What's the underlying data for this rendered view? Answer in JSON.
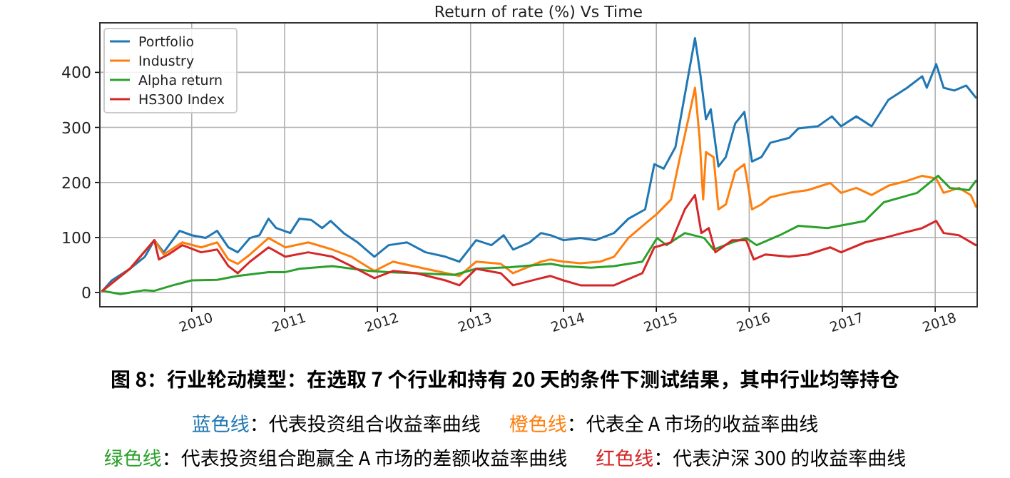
{
  "chart_data": {
    "type": "line",
    "title": "Return of rate (%) Vs Time",
    "xlim": [
      "2009-01-05",
      "2018-06-15"
    ],
    "ylim": [
      -26,
      490
    ],
    "xticks": [
      "2010",
      "2011",
      "2012",
      "2013",
      "2014",
      "2015",
      "2016",
      "2017",
      "2018"
    ],
    "yticks": [
      0,
      100,
      200,
      300,
      400
    ],
    "grid": true,
    "legend": "top left",
    "line_style": "solid",
    "marker": "none",
    "series": [
      {
        "name": "Portfolio",
        "color": "#1f77b4",
        "x": [
          "2009-01-15",
          "2009-02-21",
          "2009-05-03",
          "2009-07-01",
          "2009-08-07",
          "2009-09-13",
          "2009-11-14",
          "2010-01-01",
          "2010-02-25",
          "2010-04-11",
          "2010-05-25",
          "2010-07-01",
          "2010-08-18",
          "2010-09-24",
          "2010-10-30",
          "2010-11-29",
          "2011-01-23",
          "2011-02-28",
          "2011-04-15",
          "2011-05-29",
          "2011-07-01",
          "2011-08-21",
          "2011-10-15",
          "2011-12-20",
          "2012-02-14",
          "2012-04-26",
          "2012-07-08",
          "2012-09-24",
          "2012-11-18",
          "2013-01-23",
          "2013-03-24",
          "2013-05-11",
          "2013-06-17",
          "2013-08-21",
          "2013-10-05",
          "2013-11-11",
          "2014-01-01",
          "2014-03-09",
          "2014-05-07",
          "2014-07-19",
          "2014-09-13",
          "2014-11-18",
          "2014-12-24",
          "2015-01-30",
          "2015-03-17",
          "2015-04-23",
          "2015-06-02",
          "2015-06-24",
          "2015-07-15",
          "2015-08-03",
          "2015-09-02",
          "2015-10-01",
          "2015-11-07",
          "2015-12-13",
          "2016-01-12",
          "2016-02-18",
          "2016-03-24",
          "2016-06-06",
          "2016-07-12",
          "2016-09-27",
          "2016-11-21",
          "2016-12-27",
          "2017-02-25",
          "2017-04-26",
          "2017-07-01",
          "2017-09-13",
          "2017-11-11",
          "2017-11-29",
          "2018-01-05",
          "2018-02-03",
          "2018-03-17",
          "2018-05-03",
          "2018-06-10"
        ],
        "values": [
          3,
          22,
          43,
          65,
          95,
          73,
          112,
          104,
          99,
          112,
          82,
          73,
          99,
          104,
          134,
          117,
          108,
          134,
          132,
          117,
          130,
          108,
          91,
          65,
          86,
          91,
          73,
          65,
          56,
          95,
          86,
          104,
          78,
          91,
          108,
          104,
          95,
          99,
          95,
          108,
          134,
          151,
          233,
          225,
          264,
          359,
          462,
          393,
          315,
          333,
          229,
          246,
          307,
          328,
          238,
          246,
          272,
          281,
          298,
          302,
          320,
          302,
          320,
          302,
          350,
          372,
          393,
          372,
          415,
          372,
          367,
          376,
          354
        ]
      },
      {
        "name": "Industry",
        "color": "#ff7f0e",
        "x": [
          "2009-01-15",
          "2009-05-03",
          "2009-08-07",
          "2009-09-13",
          "2009-11-25",
          "2010-02-07",
          "2010-04-11",
          "2010-05-25",
          "2010-07-01",
          "2010-08-18",
          "2010-10-30",
          "2011-01-04",
          "2011-04-04",
          "2011-07-08",
          "2011-09-20",
          "2011-12-20",
          "2012-03-02",
          "2012-07-08",
          "2012-11-18",
          "2013-01-23",
          "2013-04-30",
          "2013-06-17",
          "2013-10-05",
          "2013-11-11",
          "2014-01-01",
          "2014-03-09",
          "2014-05-25",
          "2014-07-19",
          "2014-09-13",
          "2014-11-18",
          "2015-01-04",
          "2015-02-28",
          "2015-04-04",
          "2015-05-11",
          "2015-06-02",
          "2015-06-20",
          "2015-07-04",
          "2015-07-15",
          "2015-08-14",
          "2015-09-02",
          "2015-10-01",
          "2015-11-07",
          "2015-12-13",
          "2016-01-12",
          "2016-02-18",
          "2016-03-24",
          "2016-06-06",
          "2016-08-18",
          "2016-11-14",
          "2016-12-27",
          "2017-02-25",
          "2017-04-26",
          "2017-07-01",
          "2017-09-13",
          "2017-11-11",
          "2018-01-05",
          "2018-02-03",
          "2018-04-04",
          "2018-05-21",
          "2018-06-10"
        ],
        "values": [
          3,
          43,
          95,
          69,
          91,
          82,
          91,
          60,
          52,
          69,
          99,
          82,
          91,
          78,
          65,
          39,
          56,
          43,
          30,
          56,
          52,
          35,
          56,
          60,
          56,
          53,
          56,
          65,
          99,
          125,
          143,
          169,
          246,
          324,
          372,
          281,
          169,
          255,
          246,
          151,
          160,
          220,
          233,
          151,
          160,
          173,
          181,
          186,
          199,
          181,
          190,
          177,
          194,
          203,
          212,
          207,
          181,
          190,
          177,
          156
        ]
      },
      {
        "name": "Alpha return",
        "color": "#2ca02c",
        "x": [
          "2009-01-15",
          "2009-03-27",
          "2009-06-27",
          "2009-08-07",
          "2009-10-19",
          "2010-01-01",
          "2010-04-11",
          "2010-07-01",
          "2010-10-30",
          "2011-01-04",
          "2011-02-28",
          "2011-07-08",
          "2011-12-02",
          "2012-02-14",
          "2012-06-02",
          "2012-10-30",
          "2013-01-23",
          "2013-06-06",
          "2013-11-11",
          "2014-01-01",
          "2014-04-19",
          "2014-07-19",
          "2014-11-07",
          "2015-01-04",
          "2015-02-10",
          "2015-04-23",
          "2015-07-08",
          "2015-08-14",
          "2015-10-26",
          "2015-12-20",
          "2016-01-30",
          "2016-04-30",
          "2016-07-12",
          "2016-11-03",
          "2017-03-31",
          "2017-06-13",
          "2017-10-22",
          "2018-01-12",
          "2018-02-28",
          "2018-05-14",
          "2018-06-10"
        ],
        "values": [
          3,
          -3,
          4,
          3,
          13,
          22,
          23,
          30,
          37,
          37,
          43,
          48,
          39,
          37,
          35,
          32,
          43,
          46,
          52,
          48,
          45,
          48,
          56,
          99,
          86,
          108,
          99,
          78,
          91,
          99,
          86,
          104,
          121,
          117,
          130,
          164,
          181,
          212,
          190,
          186,
          203
        ]
      },
      {
        "name": "HS300 Index",
        "color": "#d62728",
        "x": [
          "2009-01-15",
          "2009-05-03",
          "2009-08-07",
          "2009-08-25",
          "2009-10-01",
          "2009-11-25",
          "2010-02-07",
          "2010-04-11",
          "2010-05-25",
          "2010-07-01",
          "2010-08-18",
          "2010-10-30",
          "2011-01-04",
          "2011-04-04",
          "2011-07-08",
          "2011-09-20",
          "2011-12-20",
          "2012-03-02",
          "2012-06-02",
          "2012-09-24",
          "2012-11-18",
          "2013-01-23",
          "2013-04-30",
          "2013-06-17",
          "2013-10-05",
          "2013-11-11",
          "2014-01-01",
          "2014-03-09",
          "2014-07-19",
          "2014-11-07",
          "2014-12-24",
          "2015-02-28",
          "2015-04-23",
          "2015-06-02",
          "2015-06-27",
          "2015-07-26",
          "2015-08-21",
          "2015-10-26",
          "2015-12-20",
          "2016-01-19",
          "2016-03-05",
          "2016-06-06",
          "2016-08-18",
          "2016-11-14",
          "2016-12-27",
          "2017-03-31",
          "2017-06-13",
          "2017-08-25",
          "2017-11-11",
          "2018-01-05",
          "2018-02-03",
          "2018-04-04",
          "2018-06-10"
        ],
        "values": [
          3,
          43,
          95,
          60,
          69,
          86,
          73,
          78,
          48,
          35,
          56,
          82,
          65,
          73,
          65,
          48,
          26,
          39,
          35,
          22,
          13,
          43,
          35,
          13,
          26,
          30,
          22,
          13,
          13,
          35,
          82,
          91,
          151,
          177,
          108,
          117,
          73,
          95,
          95,
          60,
          69,
          65,
          69,
          82,
          73,
          91,
          99,
          108,
          117,
          130,
          108,
          104,
          86
        ]
      }
    ],
    "annotations": [
      "图 8：行业轮动模型：在选取 7 个行业和持有 20 天的条件下测试结果，其中行业均等持仓",
      "蓝色线：代表投资组合收益率曲线",
      "橙色线：代表全 A 市场的收益率曲线",
      "绿色线：代表投资组合跑赢全 A 市场的差额收益率曲线",
      "红色线：代表沪深 300 的收益率曲线"
    ]
  }
}
